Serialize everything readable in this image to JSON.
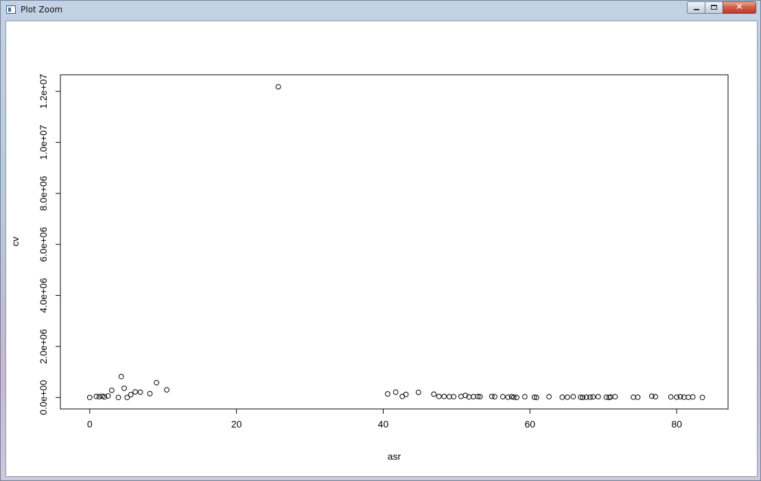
{
  "window": {
    "title": "Plot Zoom",
    "close_glyph": "✕"
  },
  "icons": {
    "app": "plot-window-icon",
    "minimize": "minimize-icon",
    "maximize": "maximize-icon",
    "close": "close-icon"
  },
  "chart_data": {
    "type": "scatter",
    "title": "",
    "xlabel": "asr",
    "ylabel": "cv",
    "xlim": [
      -4,
      87
    ],
    "ylim": [
      -450000,
      12650000
    ],
    "x_ticks": [
      0,
      20,
      40,
      60,
      80
    ],
    "x_tick_labels": [
      "0",
      "20",
      "40",
      "60",
      "80"
    ],
    "y_ticks": [
      0,
      2000000,
      4000000,
      6000000,
      8000000,
      10000000,
      12000000
    ],
    "y_tick_labels": [
      "0.0e+00",
      "2.0e+06",
      "4.0e+06",
      "6.0e+06",
      "8.0e+06",
      "1.0e+07",
      "1.2e+07"
    ],
    "grid": false,
    "legend": "none",
    "marker": "open-circle",
    "points": [
      [
        0.0,
        0
      ],
      [
        0.9,
        40000
      ],
      [
        1.3,
        30000
      ],
      [
        1.7,
        50000
      ],
      [
        2.0,
        20000
      ],
      [
        2.5,
        60000
      ],
      [
        3.0,
        280000
      ],
      [
        3.9,
        0
      ],
      [
        4.3,
        820000
      ],
      [
        4.7,
        360000
      ],
      [
        5.1,
        0
      ],
      [
        5.6,
        110000
      ],
      [
        6.2,
        220000
      ],
      [
        6.9,
        210000
      ],
      [
        8.2,
        150000
      ],
      [
        9.1,
        580000
      ],
      [
        10.5,
        300000
      ],
      [
        25.7,
        12180000
      ],
      [
        40.6,
        140000
      ],
      [
        41.7,
        210000
      ],
      [
        42.6,
        40000
      ],
      [
        43.1,
        120000
      ],
      [
        44.8,
        200000
      ],
      [
        46.9,
        130000
      ],
      [
        47.6,
        40000
      ],
      [
        48.3,
        40000
      ],
      [
        49.0,
        30000
      ],
      [
        49.6,
        30000
      ],
      [
        50.6,
        40000
      ],
      [
        51.2,
        80000
      ],
      [
        51.7,
        20000
      ],
      [
        52.3,
        30000
      ],
      [
        52.9,
        40000
      ],
      [
        53.2,
        30000
      ],
      [
        54.8,
        40000
      ],
      [
        55.2,
        30000
      ],
      [
        56.3,
        30000
      ],
      [
        57.0,
        10000
      ],
      [
        57.5,
        30000
      ],
      [
        57.8,
        10000
      ],
      [
        58.2,
        0
      ],
      [
        59.3,
        30000
      ],
      [
        60.6,
        10000
      ],
      [
        60.9,
        0
      ],
      [
        62.6,
        30000
      ],
      [
        64.4,
        10000
      ],
      [
        65.1,
        10000
      ],
      [
        65.9,
        30000
      ],
      [
        66.9,
        10000
      ],
      [
        67.2,
        0
      ],
      [
        67.7,
        10000
      ],
      [
        68.2,
        10000
      ],
      [
        68.6,
        20000
      ],
      [
        69.3,
        30000
      ],
      [
        70.4,
        10000
      ],
      [
        70.8,
        0
      ],
      [
        71.0,
        20000
      ],
      [
        71.6,
        30000
      ],
      [
        74.1,
        10000
      ],
      [
        74.7,
        10000
      ],
      [
        76.6,
        50000
      ],
      [
        77.1,
        30000
      ],
      [
        79.2,
        20000
      ],
      [
        80.0,
        10000
      ],
      [
        80.5,
        30000
      ],
      [
        81.0,
        10000
      ],
      [
        81.6,
        10000
      ],
      [
        82.2,
        20000
      ],
      [
        83.5,
        0
      ]
    ]
  }
}
